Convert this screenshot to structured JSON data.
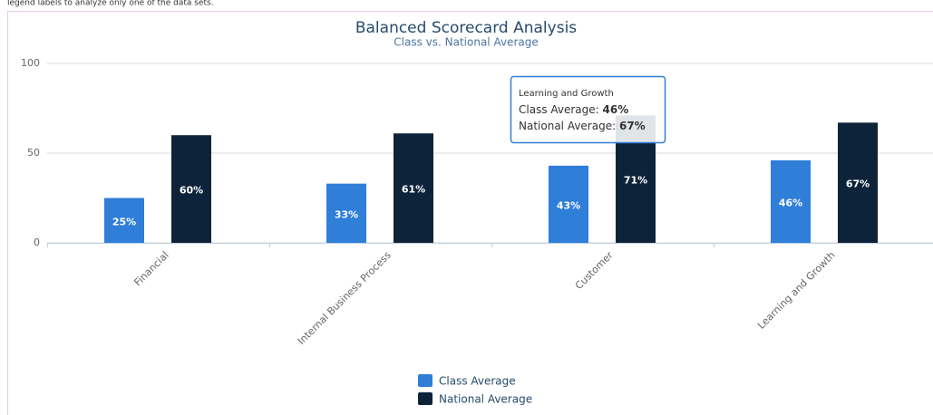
{
  "caption": "legend labels to analyze only one of the data sets.",
  "chart_data": {
    "type": "bar",
    "title": "Balanced Scorecard Analysis",
    "subtitle": "Class vs. National Average",
    "categories": [
      "Financial",
      "Internal Business Process",
      "Customer",
      "Learning and Growth"
    ],
    "series": [
      {
        "name": "Class Average",
        "color": "#2f7ed8",
        "values": [
          25,
          33,
          43,
          46
        ],
        "value_labels": [
          "25%",
          "33%",
          "43%",
          "46%"
        ]
      },
      {
        "name": "National Average",
        "color": "#0d233a",
        "values": [
          60,
          61,
          71,
          67
        ],
        "value_labels": [
          "60%",
          "61%",
          "71%",
          "67%"
        ]
      }
    ],
    "ylim": [
      0,
      100
    ],
    "yticks": [
      0,
      50,
      100
    ],
    "grid": true,
    "tooltip": {
      "title": "Learning and Growth",
      "category": 3
    }
  }
}
